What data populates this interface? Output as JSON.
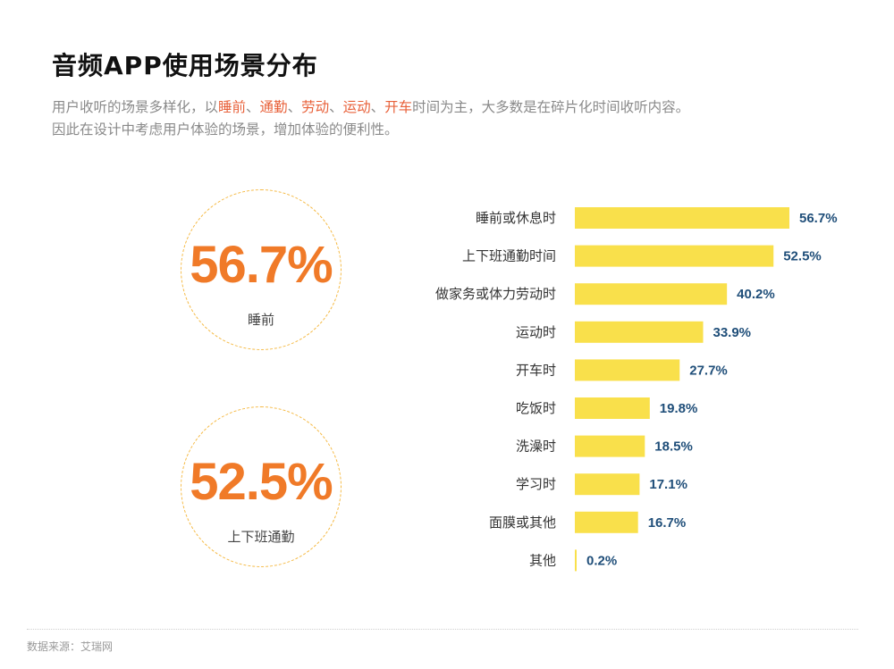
{
  "title": "音频APP使用场景分布",
  "description": {
    "line1_parts": [
      {
        "text": "用户收听的场景多样化，以",
        "highlight": false
      },
      {
        "text": "睡前",
        "highlight": true
      },
      {
        "text": "、",
        "highlight": false
      },
      {
        "text": "通勤",
        "highlight": true
      },
      {
        "text": "、",
        "highlight": false
      },
      {
        "text": "劳动",
        "highlight": true
      },
      {
        "text": "、",
        "highlight": false
      },
      {
        "text": "运动",
        "highlight": true
      },
      {
        "text": "、",
        "highlight": false
      },
      {
        "text": "开车",
        "highlight": true
      },
      {
        "text": "时间为主，大多数是在碎片化时间收听内容。",
        "highlight": false
      }
    ],
    "line2": "因此在设计中考虑用户体验的场景，增加体验的便利性。"
  },
  "highlights": [
    {
      "value": "56.7%",
      "label": "睡前"
    },
    {
      "value": "52.5%",
      "label": "上下班通勤"
    }
  ],
  "colors": {
    "accent_orange": "#f07a28",
    "highlight_red": "#e8613a",
    "bar_yellow": "#f9e04b",
    "value_blue": "#1f4e79",
    "circle_dash": "#f5b942"
  },
  "chart_data": {
    "type": "bar",
    "orientation": "horizontal",
    "categories": [
      "睡前或休息时",
      "上下班通勤时间",
      "做家务或体力劳动时",
      "运动时",
      "开车时",
      "吃饭时",
      "洗澡时",
      "学习时",
      "面膜或其他",
      "其他"
    ],
    "values": [
      56.7,
      52.5,
      40.2,
      33.9,
      27.7,
      19.8,
      18.5,
      17.1,
      16.7,
      0.2
    ],
    "value_labels": [
      "56.7%",
      "52.5%",
      "40.2%",
      "33.9%",
      "27.7%",
      "19.8%",
      "18.5%",
      "17.1%",
      "16.7%",
      "0.2%"
    ],
    "unit": "%",
    "xlim": [
      0,
      56.7
    ],
    "grid": false,
    "legend": "none"
  },
  "source": "数据来源：艾瑞网"
}
